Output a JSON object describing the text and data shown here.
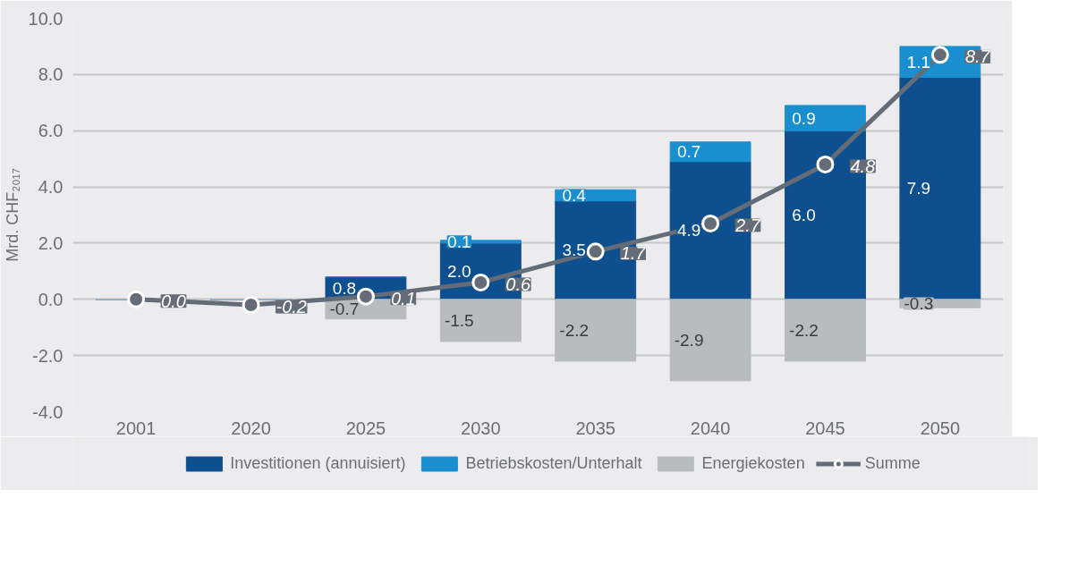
{
  "chart_data": {
    "type": "bar",
    "stacked": true,
    "ylabel": "Mrd. CHF₂₀₁₇",
    "categories": [
      "2001",
      "2020",
      "2025",
      "2030",
      "2035",
      "2040",
      "2045",
      "2050"
    ],
    "ylim": [
      -4.0,
      10.0
    ],
    "yticks": [
      {
        "value": -4,
        "label": "-4.0"
      },
      {
        "value": -2,
        "label": "-2.0"
      },
      {
        "value": 0,
        "label": "0.0"
      },
      {
        "value": 2,
        "label": "2.0"
      },
      {
        "value": 4,
        "label": "4.0"
      },
      {
        "value": 6,
        "label": "6.0"
      },
      {
        "value": 8,
        "label": "8.0"
      },
      {
        "value": 10,
        "label": "10.0"
      }
    ],
    "grid": "y",
    "legend": "bottom",
    "series": [
      {
        "name": "Investitionen (annuisiert)",
        "color": "#0e4f8f",
        "values": [
          0,
          0,
          0.8,
          2.0,
          3.5,
          4.9,
          6.0,
          7.9
        ],
        "value_labels": [
          null,
          null,
          "0.8",
          "2.0",
          "3.5",
          "4.9",
          "6.0",
          "7.9"
        ]
      },
      {
        "name": "Betriebskosten/Unterhalt",
        "color": "#1a8fd0",
        "values": [
          0,
          0,
          0.0,
          0.1,
          0.4,
          0.7,
          0.9,
          1.1
        ],
        "value_labels": [
          null,
          null,
          null,
          "0.1",
          "0.4",
          "0.7",
          "0.9",
          "1.1"
        ]
      },
      {
        "name": "Energiekosten",
        "color": "#b9bcbf",
        "values": [
          0,
          null,
          -0.7,
          -1.5,
          -2.2,
          -2.9,
          -2.2,
          -0.3
        ],
        "value_labels": [
          null,
          null,
          "-0.7",
          "-1.5",
          "-2.2",
          "-2.9",
          "-2.2",
          "-0.3"
        ]
      },
      {
        "name": "Summe",
        "type": "line",
        "color": "#646d77",
        "marker": "circle",
        "values": [
          0.0,
          -0.2,
          0.1,
          0.6,
          1.7,
          2.7,
          4.8,
          8.7
        ],
        "value_labels": [
          "0.0",
          "-0.2",
          "0.1",
          "0.6",
          "1.7",
          "2.7",
          "4.8",
          "8.7"
        ]
      }
    ]
  }
}
